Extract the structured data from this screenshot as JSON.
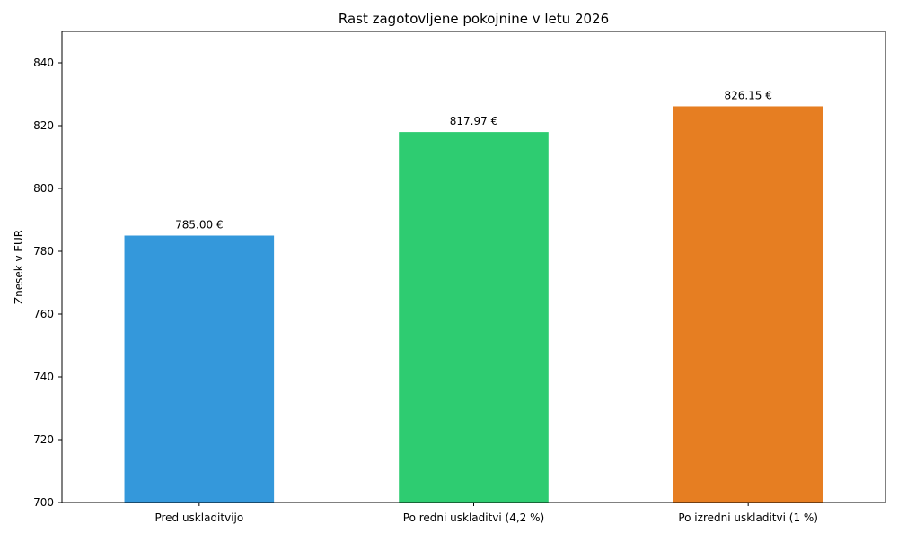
{
  "chart_data": {
    "type": "bar",
    "title": "Rast zagotovljene pokojnine v letu 2026",
    "xlabel": "",
    "ylabel": "Znesek v EUR",
    "categories": [
      "Pred uskladitvijo",
      "Po redni uskladitvi (4,2 %)",
      "Po izredni uskladitvi (1 %)"
    ],
    "values": [
      785.0,
      817.97,
      826.15
    ],
    "data_labels": [
      "785.00 €",
      "817.97 €",
      "826.15 €"
    ],
    "colors": [
      "#3498db",
      "#2ecc71",
      "#e67e22"
    ],
    "ylim": [
      700,
      850
    ],
    "yticks": [
      700,
      720,
      740,
      760,
      780,
      800,
      820,
      840
    ],
    "grid": false,
    "legend": "none"
  }
}
